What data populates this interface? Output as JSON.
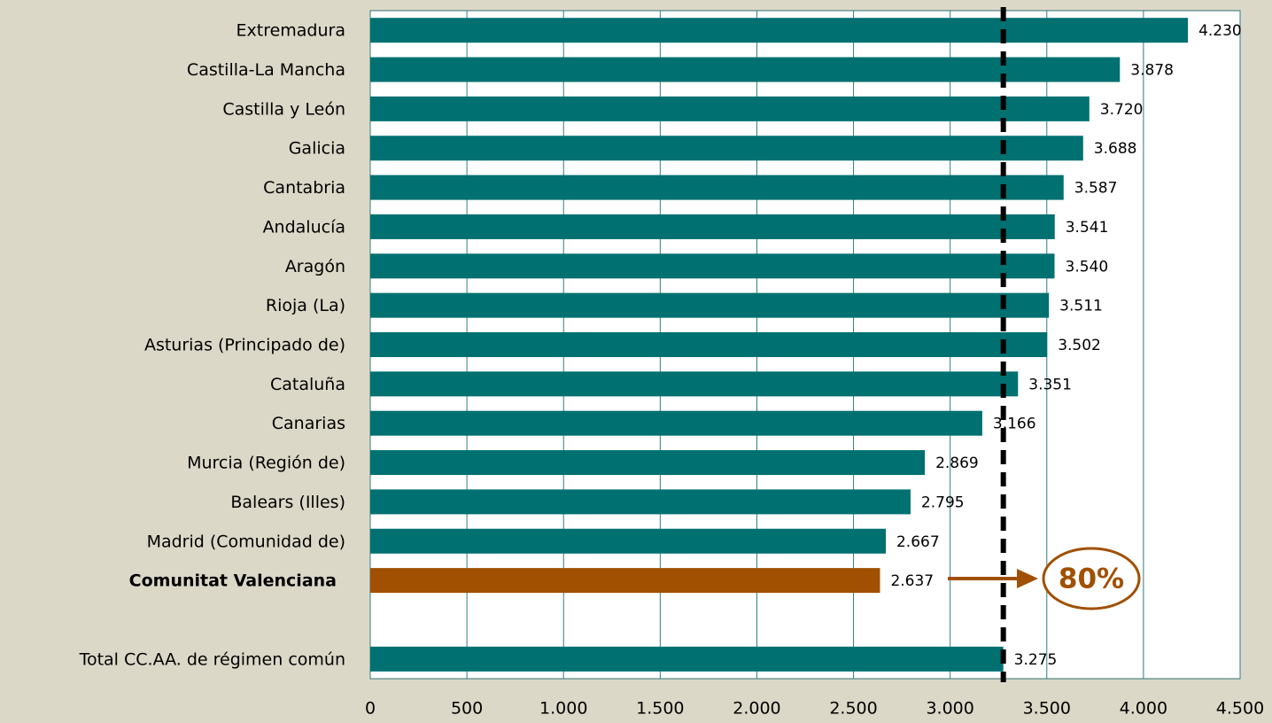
{
  "chart_data": {
    "type": "barh",
    "categories": [
      "Extremadura",
      "Castilla-La Mancha",
      "Castilla y León",
      "Galicia",
      "Cantabria",
      "Andalucía",
      "Aragón",
      "Rioja (La)",
      "Asturias (Principado de)",
      "Cataluña",
      "Canarias",
      "Murcia (Región de)",
      "Balears (Illes)",
      "Madrid (Comunidad de)",
      "Comunitat Valenciana",
      null,
      "Total CC.AA. de régimen común"
    ],
    "values": [
      4230,
      3878,
      3720,
      3688,
      3587,
      3541,
      3540,
      3511,
      3502,
      3351,
      3166,
      2869,
      2795,
      2667,
      2637,
      null,
      3275
    ],
    "value_labels": [
      "4.230",
      "3.878",
      "3.720",
      "3.688",
      "3.587",
      "3.541",
      "3.540",
      "3.511",
      "3.502",
      "3.351",
      "3.166",
      "2.869",
      "2.795",
      "2.667",
      "2.637",
      null,
      "3.275"
    ],
    "colors": [
      "#007070",
      "#007070",
      "#007070",
      "#007070",
      "#007070",
      "#007070",
      "#007070",
      "#007070",
      "#007070",
      "#007070",
      "#007070",
      "#007070",
      "#007070",
      "#007070",
      "#a05000",
      null,
      "#007070"
    ],
    "xlim": [
      0,
      4500
    ],
    "xticks": [
      0,
      500,
      {
        "value": 1000,
        "label": "1.000"
      },
      {
        "value": 1500,
        "label": "1.500"
      },
      {
        "value": 2000,
        "label": "2.000"
      },
      {
        "value": 2500,
        "label": "2.500"
      },
      {
        "value": 3000,
        "label": "3.000"
      },
      {
        "value": 3500,
        "label": "3.500"
      },
      {
        "value": 4000,
        "label": "4.000"
      },
      {
        "value": 4500,
        "label": "4.500"
      }
    ],
    "grid": true,
    "reference_line": 3275,
    "annotation": "80%"
  }
}
